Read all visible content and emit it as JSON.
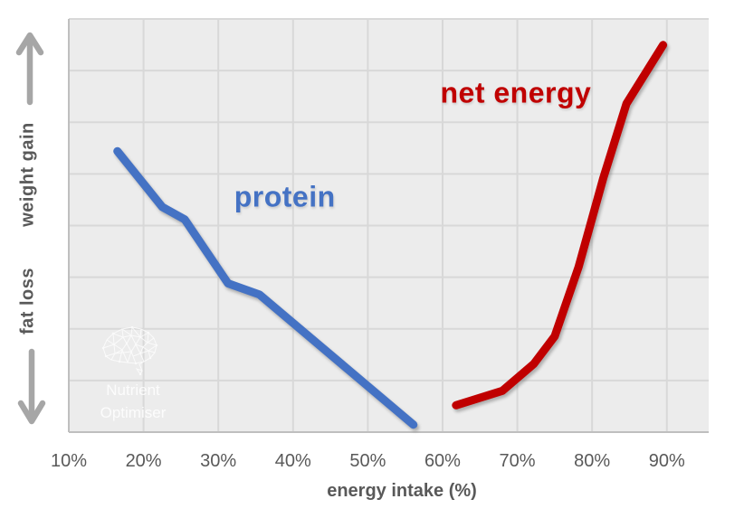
{
  "chart": {
    "x_axis": {
      "title": "energy intake (%)",
      "tick_labels": [
        "10%",
        "20%",
        "30%",
        "40%",
        "50%",
        "60%",
        "70%",
        "80%",
        "90%"
      ],
      "tick_values": [
        10,
        20,
        30,
        40,
        50,
        60,
        70,
        80,
        90
      ]
    },
    "y_axis": {
      "top_label": "weight gain",
      "bottom_label": "fat loss"
    }
  },
  "watermark": {
    "line1": "Nutrient",
    "line2": "Optimiser"
  },
  "colors": {
    "plot_bg": "#ececec",
    "gridline": "#d8d8d8",
    "axis_line": "#bfbfbf",
    "tick_text": "#595959",
    "arrow": "#a6a6a6",
    "protein": "#4472c4",
    "net_energy": "#c00000",
    "watermark": "#ffffff"
  },
  "chart_data": {
    "type": "line",
    "title": "",
    "xlabel": "energy intake (%)",
    "ylabel": "weight gain (up) / fat loss (down), unlabeled relative scale",
    "xlim": [
      10,
      95.6
    ],
    "ylim": [
      0,
      1
    ],
    "x_ticks": [
      "10%",
      "20%",
      "30%",
      "40%",
      "50%",
      "60%",
      "70%",
      "80%",
      "90%"
    ],
    "grid": true,
    "legend": "inline text labels near each curve",
    "series": [
      {
        "name": "protein",
        "color": "#4472c4",
        "x": [
          16.5,
          22.5,
          25.5,
          31.3,
          35.5,
          56.1
        ],
        "y": [
          0.68,
          0.545,
          0.515,
          0.36,
          0.333,
          0.018
        ]
      },
      {
        "name": "net energy",
        "color": "#c00000",
        "x": [
          61.8,
          68.0,
          72.2,
          75.0,
          78.2,
          81.5,
          84.6,
          89.5
        ],
        "y": [
          0.065,
          0.1,
          0.165,
          0.232,
          0.4,
          0.615,
          0.795,
          0.937
        ]
      }
    ],
    "annotations": [
      {
        "text": "protein",
        "x": 38.9,
        "y": 0.569,
        "color": "#4472c4"
      },
      {
        "text": "net energy",
        "x": 69.8,
        "y": 0.82,
        "color": "#c00000"
      }
    ]
  }
}
